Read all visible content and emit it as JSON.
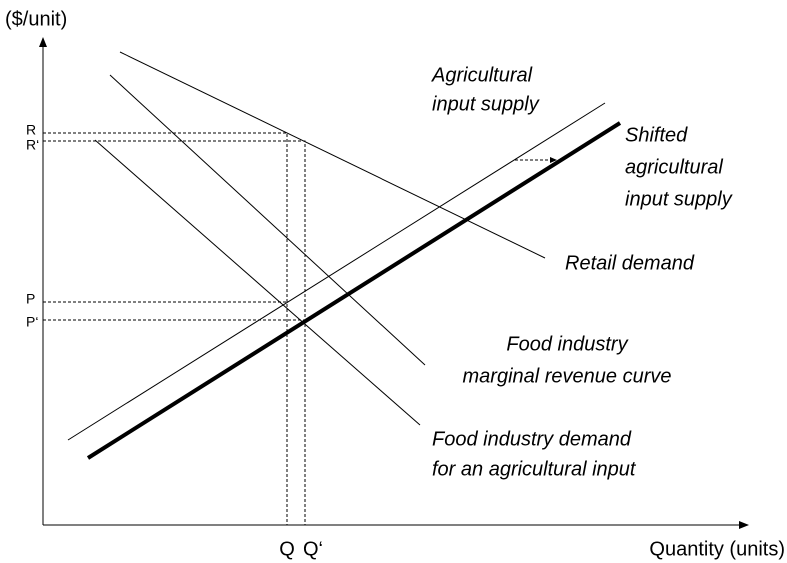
{
  "axes": {
    "y_label": "($/unit)",
    "x_label": "Quantity (units)"
  },
  "ticks": {
    "y": [
      "R",
      "R‘",
      "P",
      "P‘"
    ],
    "x": [
      "Q",
      "Q‘"
    ]
  },
  "curves": [
    {
      "label": [
        "Agricultural",
        "input supply"
      ]
    },
    {
      "label": [
        "Shifted",
        "agricultural",
        "input supply"
      ]
    },
    {
      "label": [
        "Retail demand"
      ]
    },
    {
      "label": [
        "Food industry",
        "marginal revenue curve"
      ]
    },
    {
      "label": [
        "Food industry demand",
        "for an agricultural input"
      ]
    }
  ]
}
